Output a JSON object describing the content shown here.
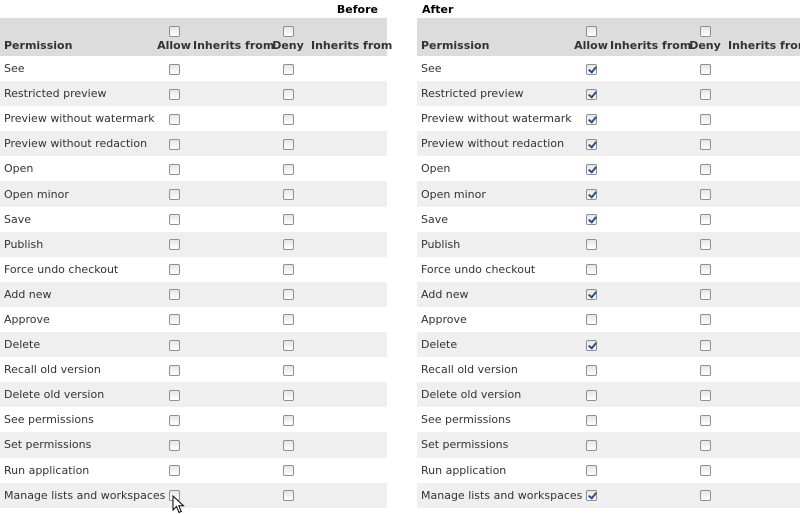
{
  "panels": [
    {
      "title": "Before",
      "columns": {
        "permission": "Permission",
        "allow": "Allow",
        "inherits_from": "Inherits from",
        "deny": "Deny",
        "inherits_from_2": "Inherits from"
      },
      "header_allow_checked": false,
      "header_deny_checked": false,
      "rows": [
        {
          "name": "See",
          "allow": false,
          "deny": false
        },
        {
          "name": "Restricted preview",
          "allow": false,
          "deny": false
        },
        {
          "name": "Preview without watermark",
          "allow": false,
          "deny": false
        },
        {
          "name": "Preview without redaction",
          "allow": false,
          "deny": false
        },
        {
          "name": "Open",
          "allow": false,
          "deny": false
        },
        {
          "name": "Open minor",
          "allow": false,
          "deny": false
        },
        {
          "name": "Save",
          "allow": false,
          "deny": false
        },
        {
          "name": "Publish",
          "allow": false,
          "deny": false
        },
        {
          "name": "Force undo checkout",
          "allow": false,
          "deny": false
        },
        {
          "name": "Add new",
          "allow": false,
          "deny": false
        },
        {
          "name": "Approve",
          "allow": false,
          "deny": false
        },
        {
          "name": "Delete",
          "allow": false,
          "deny": false
        },
        {
          "name": "Recall old version",
          "allow": false,
          "deny": false
        },
        {
          "name": "Delete old version",
          "allow": false,
          "deny": false
        },
        {
          "name": "See permissions",
          "allow": false,
          "deny": false
        },
        {
          "name": "Set permissions",
          "allow": false,
          "deny": false
        },
        {
          "name": "Run application",
          "allow": false,
          "deny": false
        },
        {
          "name": "Manage lists and workspaces",
          "allow": false,
          "deny": false
        }
      ]
    },
    {
      "title": "After",
      "columns": {
        "permission": "Permission",
        "allow": "Allow",
        "inherits_from": "Inherits from",
        "deny": "Deny",
        "inherits_from_2": "Inherits from"
      },
      "header_allow_checked": false,
      "header_deny_checked": false,
      "rows": [
        {
          "name": "See",
          "allow": true,
          "deny": false
        },
        {
          "name": "Restricted preview",
          "allow": true,
          "deny": false
        },
        {
          "name": "Preview without watermark",
          "allow": true,
          "deny": false
        },
        {
          "name": "Preview without redaction",
          "allow": true,
          "deny": false
        },
        {
          "name": "Open",
          "allow": true,
          "deny": false
        },
        {
          "name": "Open minor",
          "allow": true,
          "deny": false
        },
        {
          "name": "Save",
          "allow": true,
          "deny": false
        },
        {
          "name": "Publish",
          "allow": false,
          "deny": false
        },
        {
          "name": "Force undo checkout",
          "allow": false,
          "deny": false
        },
        {
          "name": "Add new",
          "allow": true,
          "deny": false
        },
        {
          "name": "Approve",
          "allow": false,
          "deny": false
        },
        {
          "name": "Delete",
          "allow": true,
          "deny": false
        },
        {
          "name": "Recall old version",
          "allow": false,
          "deny": false
        },
        {
          "name": "Delete old version",
          "allow": false,
          "deny": false
        },
        {
          "name": "See permissions",
          "allow": false,
          "deny": false
        },
        {
          "name": "Set permissions",
          "allow": false,
          "deny": false
        },
        {
          "name": "Run application",
          "allow": false,
          "deny": false
        },
        {
          "name": "Manage lists and workspaces",
          "allow": true,
          "deny": false
        }
      ]
    }
  ],
  "icons": {
    "cursor": "mouse-pointer-icon",
    "checkbox_checked": "checkmark-icon"
  },
  "colors": {
    "header_bg": "#dcdcdc",
    "row_alt_bg": "#efefef",
    "row_bg": "#ffffff",
    "check_color": "#2a4f8c",
    "text": "#333333"
  }
}
